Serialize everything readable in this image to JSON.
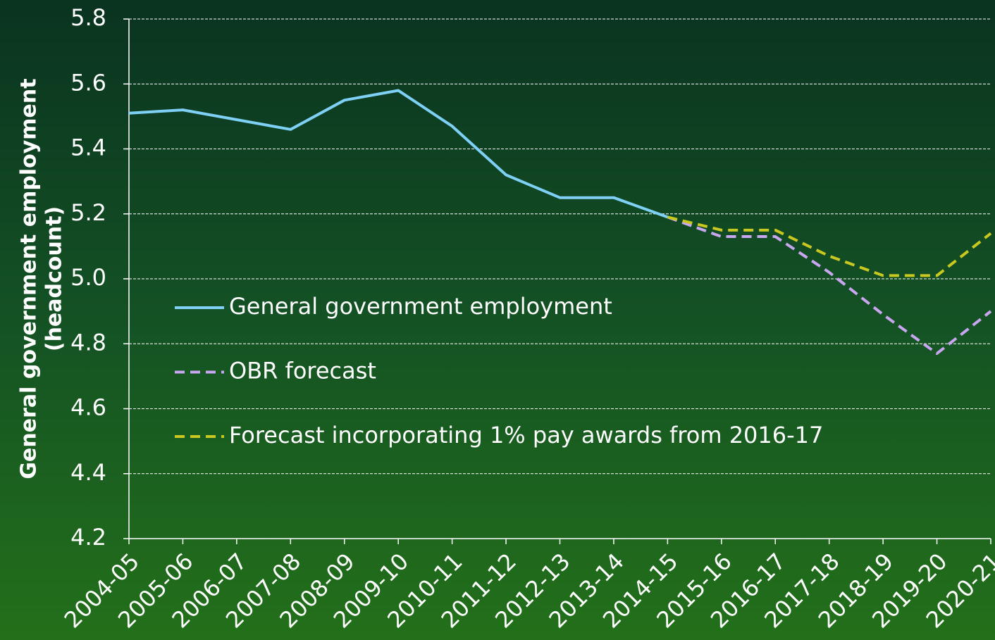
{
  "chart_data": {
    "type": "line",
    "ylabel": [
      "General government employment",
      "(headcount)"
    ],
    "categories": [
      "2004-05",
      "2005-06",
      "2006-07",
      "2007-08",
      "2008-09",
      "2009-10",
      "2010-11",
      "2011-12",
      "2012-13",
      "2013-14",
      "2014-15",
      "2015-16",
      "2016-17",
      "2017-18",
      "2018-19",
      "2019-20",
      "2020-21"
    ],
    "series": [
      {
        "name": "General government employment",
        "color": "#7fd0f5",
        "style": "solid",
        "values": [
          5.51,
          5.52,
          5.49,
          5.46,
          5.55,
          5.58,
          5.47,
          5.32,
          5.25,
          5.25,
          5.19,
          null,
          null,
          null,
          null,
          null,
          null
        ]
      },
      {
        "name": "OBR forecast",
        "color": "#c9a6f0",
        "style": "dashed",
        "values": [
          null,
          null,
          null,
          null,
          null,
          null,
          null,
          null,
          null,
          null,
          5.19,
          5.13,
          5.13,
          5.02,
          4.89,
          4.77,
          4.9
        ]
      },
      {
        "name": "Forecast incorporating 1% pay awards from 2016-17",
        "color": "#c8c820",
        "style": "dashed",
        "values": [
          null,
          null,
          null,
          null,
          null,
          null,
          null,
          null,
          null,
          null,
          5.19,
          5.15,
          5.15,
          5.07,
          5.01,
          5.01,
          5.14
        ]
      }
    ],
    "ylim": [
      4.2,
      5.8
    ],
    "yticks": [
      4.2,
      4.4,
      4.6,
      4.8,
      {
        "value": 5,
        "label": "5.0"
      },
      5.2,
      5.4,
      5.6,
      5.8
    ],
    "grid": true,
    "legend": "left"
  }
}
